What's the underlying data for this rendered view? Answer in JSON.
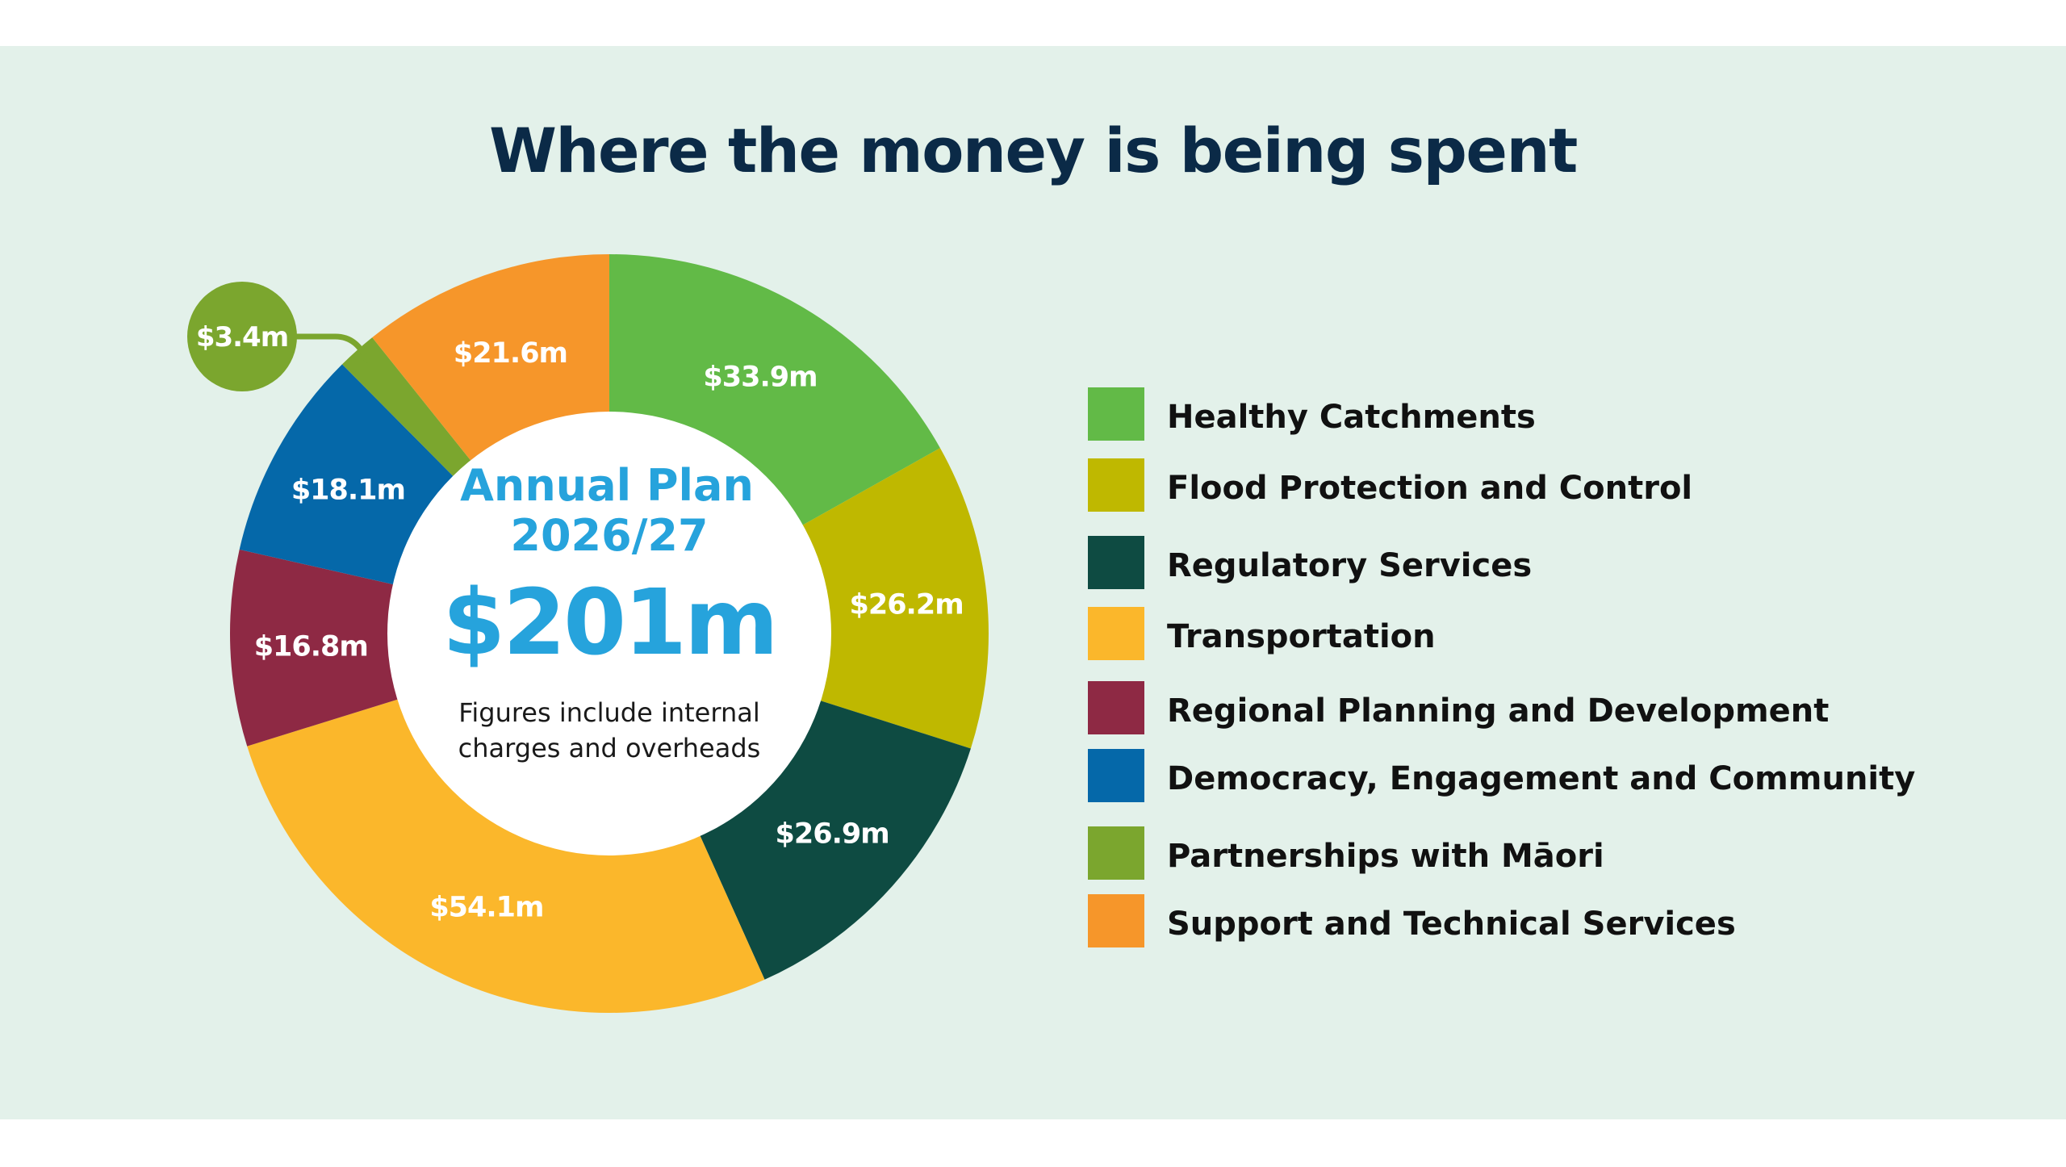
{
  "title": "Where the money is being spent",
  "center": {
    "plan": "Annual Plan",
    "year": "2026/27",
    "total": "$201m",
    "note_line1": "Figures include internal",
    "note_line2": "charges and overheads"
  },
  "colors": {
    "background": "#e3f1ea",
    "title": "#0b2a47",
    "center_text": "#26a3dc"
  },
  "chart_data": {
    "type": "pie",
    "donut": true,
    "total": 201,
    "unit": "$m",
    "start_at": "top",
    "direction": "clockwise",
    "legend_position": "right",
    "slices": [
      {
        "name": "Healthy Catchments",
        "value": 33.9,
        "label": "$33.9m",
        "color": "#62ba47"
      },
      {
        "name": "Flood Protection and Control",
        "value": 26.2,
        "label": "$26.2m",
        "color": "#bfb800"
      },
      {
        "name": "Regulatory Services",
        "value": 26.9,
        "label": "$26.9m",
        "color": "#0e4b42"
      },
      {
        "name": "Transportation",
        "value": 54.1,
        "label": "$54.1m",
        "color": "#fbb72b"
      },
      {
        "name": "Regional Planning and Development",
        "value": 16.8,
        "label": "$16.8m",
        "color": "#8e2944"
      },
      {
        "name": "Democracy, Engagement and Community",
        "value": 18.1,
        "label": "$18.1m",
        "color": "#0568a9"
      },
      {
        "name": "Partnerships with Māori",
        "value": 3.4,
        "label": "$3.4m",
        "color": "#7ba62e"
      },
      {
        "name": "Support and Technical Services",
        "value": 21.6,
        "label": "$21.6m",
        "color": "#f6962a"
      }
    ]
  }
}
